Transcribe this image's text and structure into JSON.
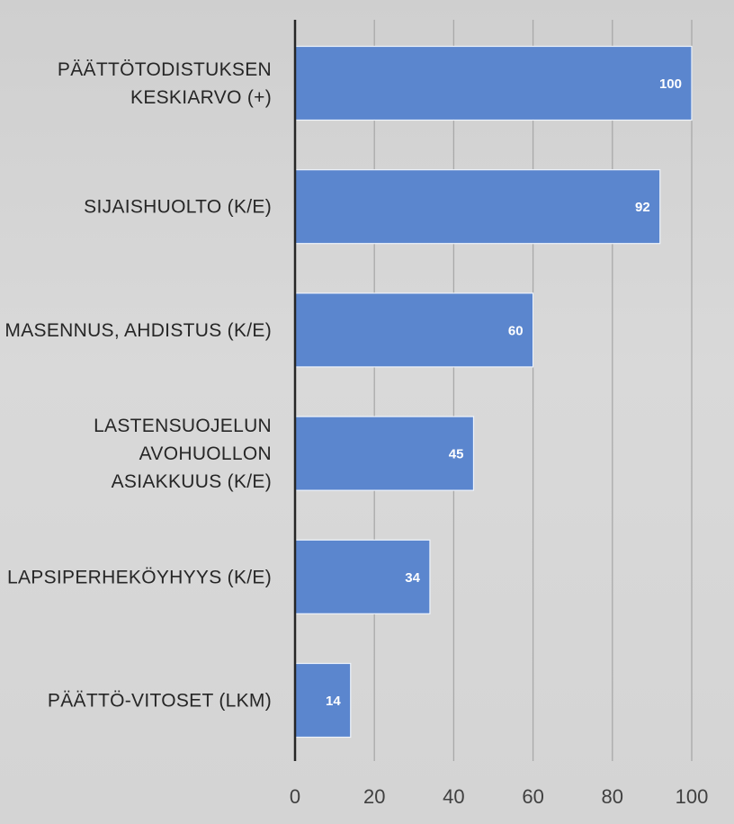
{
  "chart_data": {
    "type": "bar",
    "orientation": "horizontal",
    "title": "",
    "xlabel": "",
    "ylabel": "",
    "categories": [
      "PÄÄTTÖTODISTUKSEN KESKIARVO (+)",
      "SIJAISHUOLTO (K/E)",
      "MASENNUS, AHDISTUS (K/E)",
      "LASTENSUOJELUN AVOHUOLLON ASIAKKUUS (K/E)",
      "LAPSIPERHEKÖYHYYS (K/E)",
      "PÄÄTTÖ-VITOSET (LKM)"
    ],
    "category_lines": [
      [
        "PÄÄTTÖTODISTUKSEN",
        "KESKIARVO (+)"
      ],
      [
        "SIJAISHUOLTO (K/E)"
      ],
      [
        "MASENNUS, AHDISTUS (K/E)"
      ],
      [
        "LASTENSUOJELUN",
        "AVOHUOLLON",
        "ASIAKKUUS (K/E)"
      ],
      [
        "LAPSIPERHEKÖYHYYS (K/E)"
      ],
      [
        "PÄÄTTÖ-VITOSET (LKM)"
      ]
    ],
    "values": [
      100,
      92,
      60,
      45,
      34,
      14
    ],
    "xlim": [
      0,
      100
    ],
    "xticks": [
      0,
      20,
      40,
      60,
      80,
      100
    ],
    "data_labels": true,
    "grid": true,
    "legend": "none",
    "colors": {
      "bar": "#5b86ce",
      "background": "#d6d6d6",
      "grid": "#a9a9a9",
      "axis": "#262626"
    }
  }
}
